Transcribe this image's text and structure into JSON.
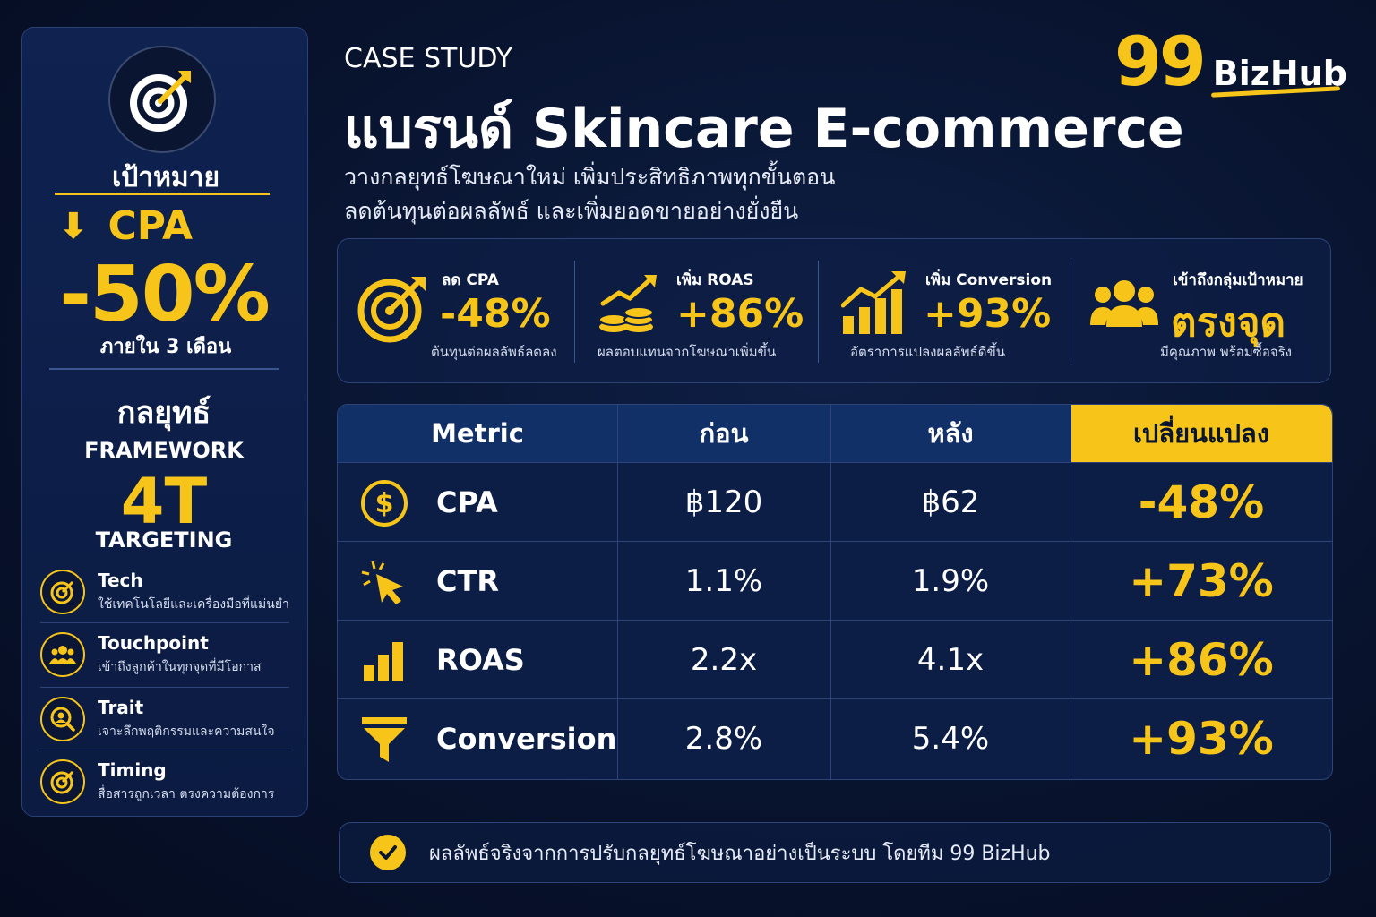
{
  "left_panel": {
    "goal_title": "เป้าหมาย",
    "goal_metric": "CPA",
    "goal_value": "-50%",
    "goal_period": "ภายใน 3 เดือน",
    "strategy_title": "กลยุทธ์",
    "framework_label": "FRAMEWORK",
    "framework_name": "4T",
    "targeting_label": "TARGETING",
    "items": [
      {
        "title": "Tech",
        "desc": "ใช้เทคโนโลยีและเครื่องมือที่แม่นยำ",
        "icon": "target-icon"
      },
      {
        "title": "Touchpoint",
        "desc": "เข้าถึงลูกค้าในทุกจุดที่มีโอกาส",
        "icon": "people-icon"
      },
      {
        "title": "Trait",
        "desc": "เจาะลึกพฤติกรรมและความสนใจ",
        "icon": "user-search-icon"
      },
      {
        "title": "Timing",
        "desc": "สื่อสารถูกเวลา ตรงความต้องการ",
        "icon": "target-icon"
      }
    ]
  },
  "header": {
    "case_label": "CASE STUDY",
    "title": "แบรนด์ Skincare E-commerce",
    "subtitle_line1": "วางกลยุทธ์โฆษณาใหม่ เพิ่มประสิทธิภาพทุกขั้นตอน",
    "subtitle_line2": "ลดต้นทุนต่อผลลัพธ์ และเพิ่มยอดขายอย่างยั่งยืน",
    "logo_number": "99",
    "logo_text": "BizHub"
  },
  "stats": [
    {
      "caption": "ลด CPA",
      "value": "-48%",
      "desc": "ต้นทุนต่อผลลัพธ์ลดลง",
      "icon": "target-icon"
    },
    {
      "caption": "เพิ่ม ROAS",
      "value": "+86%",
      "desc": "ผลตอบแทนจากโฆษณาเพิ่มขึ้น",
      "icon": "coins-growth-icon"
    },
    {
      "caption": "เพิ่ม Conversion",
      "value": "+93%",
      "desc": "อัตราการแปลงผลลัพธ์ดีขึ้น",
      "icon": "bar-chart-growth-icon"
    },
    {
      "caption": "เข้าถึงกลุ่มเป้าหมาย",
      "value": "ตรงจุด",
      "desc": "มีคุณภาพ พร้อมซื้อจริง",
      "icon": "people-icon"
    }
  ],
  "table": {
    "headers": {
      "metric": "Metric",
      "before": "ก่อน",
      "after": "หลัง",
      "change": "เปลี่ยนแปลง"
    },
    "rows": [
      {
        "metric": "CPA",
        "before": "฿120",
        "after": "฿62",
        "change": "-48%",
        "icon": "dollar-coin-icon"
      },
      {
        "metric": "CTR",
        "before": "1.1%",
        "after": "1.9%",
        "change": "+73%",
        "icon": "cursor-click-icon"
      },
      {
        "metric": "ROAS",
        "before": "2.2x",
        "after": "4.1x",
        "change": "+86%",
        "icon": "bar-chart-icon"
      },
      {
        "metric": "Conversion",
        "before": "2.8%",
        "after": "5.4%",
        "change": "+93%",
        "icon": "funnel-icon"
      }
    ]
  },
  "footer": {
    "text": "ผลลัพธ์จริงจากการปรับกลยุทธ์โฆษณาอย่างเป็นระบบ โดยทีม 99 BizHub",
    "icon": "check-circle-icon"
  },
  "colors": {
    "accent": "#f7c51a",
    "background": "#08132e",
    "panel": "#0f2250"
  }
}
